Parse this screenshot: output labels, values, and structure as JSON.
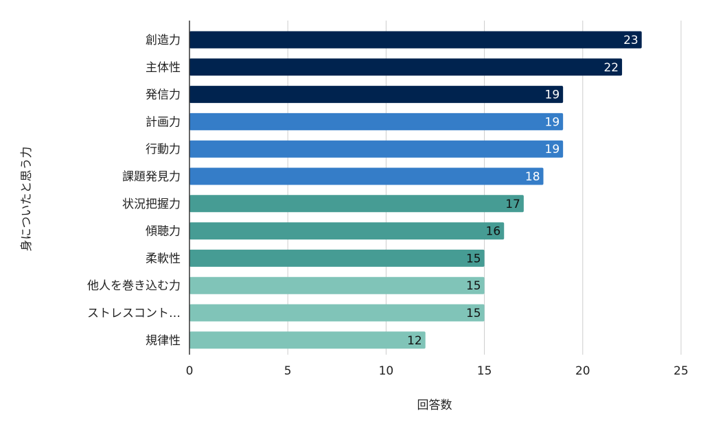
{
  "chart_data": {
    "type": "bar",
    "orientation": "horizontal",
    "categories": [
      "創造力",
      "主体性",
      "発信力",
      "計画力",
      "行動力",
      "課題発見力",
      "状況把握力",
      "傾聴力",
      "柔軟性",
      "他人を巻き込む力",
      "ストレスコント…",
      "規律性"
    ],
    "values": [
      23,
      22,
      19,
      19,
      19,
      18,
      17,
      16,
      15,
      15,
      15,
      12
    ],
    "data_labels": [
      "23",
      "22",
      "19",
      "19",
      "19",
      "18",
      "17",
      "16",
      "15",
      "15",
      "15",
      "12"
    ],
    "bar_colors": [
      "#00234f",
      "#00234f",
      "#00234f",
      "#357dc8",
      "#357dc8",
      "#357dc8",
      "#469c94",
      "#469c94",
      "#469c94",
      "#80c4b8",
      "#80c4b8",
      "#80c4b8"
    ],
    "label_colors": [
      "#ffffff",
      "#ffffff",
      "#ffffff",
      "#ffffff",
      "#ffffff",
      "#ffffff",
      "#111111",
      "#111111",
      "#111111",
      "#111111",
      "#111111",
      "#111111"
    ],
    "xlabel": "回答数",
    "ylabel": "身についたと思う力",
    "xlim": [
      0,
      25
    ],
    "xticks": [
      0,
      5,
      10,
      15,
      20,
      25
    ],
    "xtick_labels": [
      "0",
      "5",
      "10",
      "15",
      "20",
      "25"
    ],
    "grid": "vertical",
    "legend": "none"
  }
}
